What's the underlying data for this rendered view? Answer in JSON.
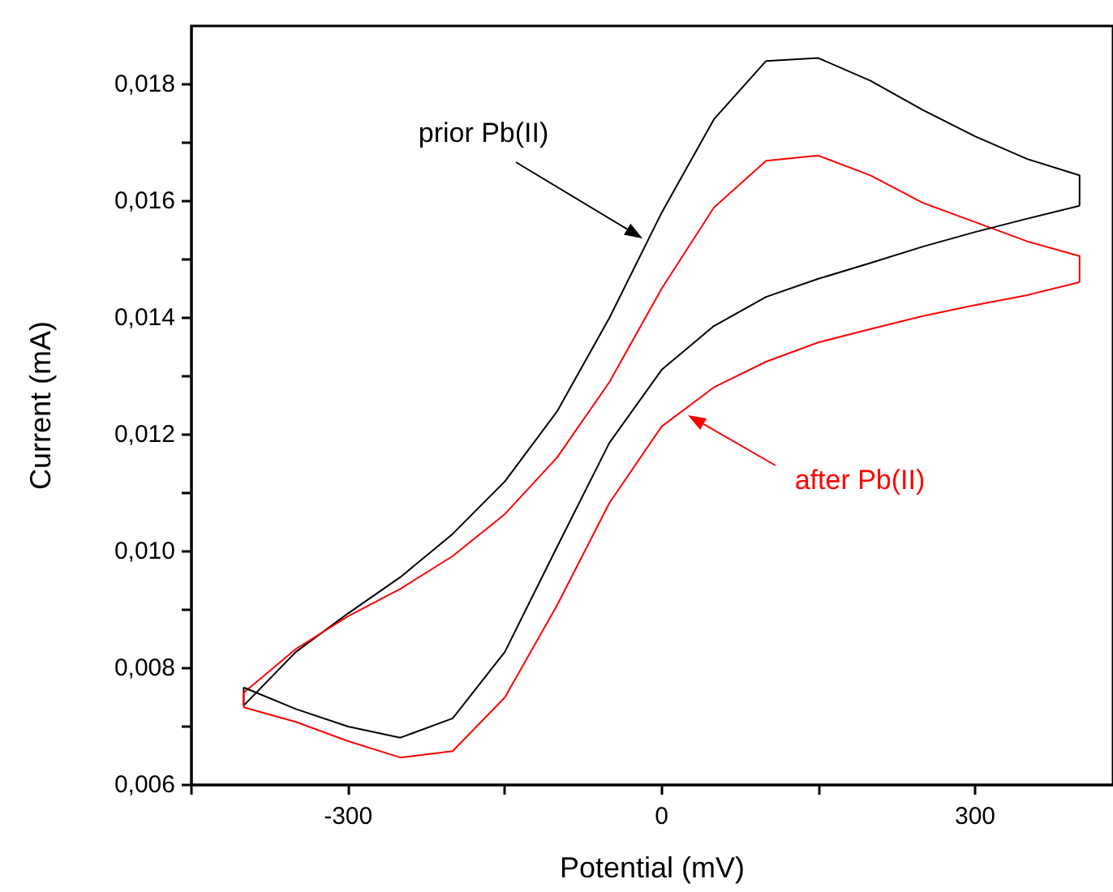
{
  "chart_data": {
    "type": "line",
    "xlabel": "Potential (mV)",
    "ylabel": "Current (mA)",
    "xlim": [
      -450,
      432
    ],
    "xticks": [
      {
        "value": -450,
        "label": null
      },
      -300,
      {
        "value": -150,
        "label": null
      },
      0,
      {
        "value": 150,
        "label": null
      },
      300
    ],
    "ylim": [
      0.006,
      0.019
    ],
    "yticks": [
      {
        "value": 0.006,
        "label": "0,006"
      },
      {
        "value": 0.007,
        "label": null
      },
      {
        "value": 0.008,
        "label": "0,008"
      },
      {
        "value": 0.009,
        "label": null
      },
      {
        "value": 0.01,
        "label": "0,010"
      },
      {
        "value": 0.011,
        "label": null
      },
      {
        "value": 0.012,
        "label": "0,012"
      },
      {
        "value": 0.013,
        "label": null
      },
      {
        "value": 0.014,
        "label": "0,014"
      },
      {
        "value": 0.015,
        "label": null
      },
      {
        "value": 0.016,
        "label": "0,016"
      },
      {
        "value": 0.017,
        "label": null
      },
      {
        "value": 0.018,
        "label": "0,018"
      }
    ],
    "grid": false,
    "legend": false,
    "marker": "none",
    "line_style": "solid",
    "series": [
      {
        "color": "#000000",
        "x": [
          -400,
          -400,
          -350,
          -300,
          -250,
          -200,
          -150,
          -100,
          -50,
          0,
          50,
          100,
          150,
          200,
          250,
          300,
          350,
          400,
          400
        ],
        "values": [
          0.00767,
          0.00736,
          0.00828,
          0.00894,
          0.00956,
          0.0103,
          0.0112,
          0.0124,
          0.014,
          0.0158,
          0.0174,
          0.0184,
          0.01845,
          0.01806,
          0.01756,
          0.01711,
          0.01672,
          0.01644,
          0.01592
        ]
      },
      {
        "color": "#ff0000",
        "x": [
          -400,
          -400,
          -350,
          -300,
          -250,
          -200,
          -150,
          -100,
          -50,
          0,
          50,
          100,
          150,
          200,
          250,
          300,
          350,
          400,
          400
        ],
        "values": [
          0.00733,
          0.00758,
          0.00833,
          0.00889,
          0.00936,
          0.00992,
          0.01064,
          0.01161,
          0.0129,
          0.0145,
          0.01589,
          0.01669,
          0.01678,
          0.01644,
          0.01597,
          0.01564,
          0.01531,
          0.01506,
          0.01461
        ]
      },
      {
        "color": "#000000",
        "x": [
          -400,
          -350,
          -300,
          -250,
          -200,
          -150,
          -100,
          -50,
          0,
          50,
          100,
          150,
          200,
          250,
          300,
          350,
          400
        ],
        "values": [
          0.00767,
          0.0073,
          0.007,
          0.00681,
          0.00714,
          0.00828,
          0.01008,
          0.01186,
          0.01311,
          0.01386,
          0.01436,
          0.01467,
          0.01494,
          0.01522,
          0.01547,
          0.0157,
          0.01592
        ]
      },
      {
        "color": "#ff0000",
        "x": [
          -400,
          -350,
          -300,
          -250,
          -200,
          -150,
          -100,
          -50,
          0,
          50,
          100,
          150,
          200,
          250,
          300,
          350,
          400
        ],
        "values": [
          0.00733,
          0.00708,
          0.00675,
          0.00647,
          0.00658,
          0.0075,
          0.00908,
          0.01083,
          0.01214,
          0.01281,
          0.01325,
          0.01358,
          0.01381,
          0.01403,
          0.01422,
          0.01439,
          0.01461
        ]
      }
    ],
    "annotations": [
      "prior Pb(II)",
      "after Pb(II)"
    ]
  }
}
